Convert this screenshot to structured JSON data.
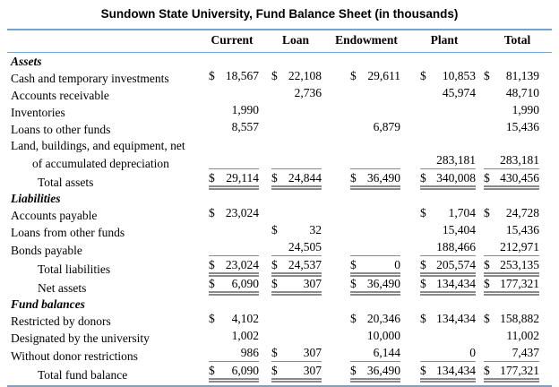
{
  "title": "Sundown State University, Fund Balance Sheet (in thousands)",
  "colors": {
    "accent_rule": "#7aa1c7",
    "cell_rule": "#8a8a8a"
  },
  "table": {
    "row_label_header": "",
    "columns": [
      "Current",
      "Loan",
      "Endowment",
      "Plant",
      "Total"
    ],
    "rows": [
      {
        "kind": "section",
        "label": "Assets",
        "cells": [
          null,
          null,
          null,
          null,
          null
        ]
      },
      {
        "kind": "item",
        "label": "Cash and temporary investments",
        "cells": [
          {
            "dollar": true,
            "value": "18,567"
          },
          {
            "dollar": true,
            "value": "22,108"
          },
          {
            "dollar": true,
            "value": "29,611"
          },
          {
            "dollar": true,
            "value": "10,853"
          },
          {
            "dollar": true,
            "value": "81,139"
          }
        ]
      },
      {
        "kind": "item",
        "label": "Accounts receivable",
        "cells": [
          null,
          {
            "value": "2,736"
          },
          null,
          {
            "value": "45,974"
          },
          {
            "value": "48,710"
          }
        ]
      },
      {
        "kind": "item",
        "label": "Inventories",
        "cells": [
          {
            "value": "1,990"
          },
          null,
          null,
          null,
          {
            "value": "1,990"
          }
        ]
      },
      {
        "kind": "item",
        "label": "Loans to other funds",
        "cells": [
          {
            "value": "8,557"
          },
          null,
          {
            "value": "6,879"
          },
          null,
          {
            "value": "15,436"
          }
        ]
      },
      {
        "kind": "item",
        "label": "Land, buildings, and equipment, net",
        "cells": [
          null,
          null,
          null,
          null,
          null
        ]
      },
      {
        "kind": "item-cont",
        "label": "of accumulated depreciation",
        "cells": [
          {
            "rule": "single"
          },
          {
            "rule": "single"
          },
          {
            "rule": "single"
          },
          {
            "value": "283,181",
            "rule": "single"
          },
          {
            "value": "283,181",
            "rule": "single"
          }
        ]
      },
      {
        "kind": "total",
        "label": "Total assets",
        "cells": [
          {
            "dollar": true,
            "value": "29,114",
            "rule": "double"
          },
          {
            "dollar": true,
            "value": "24,844",
            "rule": "double"
          },
          {
            "dollar": true,
            "value": "36,490",
            "rule": "double"
          },
          {
            "dollar": true,
            "value": "340,008",
            "rule": "double"
          },
          {
            "dollar": true,
            "value": "430,456",
            "rule": "double"
          }
        ]
      },
      {
        "kind": "section",
        "label": "Liabilities",
        "cells": [
          null,
          null,
          null,
          null,
          null
        ]
      },
      {
        "kind": "item",
        "label": "Accounts payable",
        "cells": [
          {
            "dollar": true,
            "value": "23,024"
          },
          null,
          null,
          {
            "dollar": true,
            "value": "1,704"
          },
          {
            "dollar": true,
            "value": "24,728"
          }
        ]
      },
      {
        "kind": "item",
        "label": "Loans from other funds",
        "cells": [
          null,
          {
            "dollar": true,
            "value": "32"
          },
          null,
          {
            "value": "15,404"
          },
          {
            "value": "15,436"
          }
        ]
      },
      {
        "kind": "item",
        "label": "Bonds payable",
        "cells": [
          {
            "rule": "single"
          },
          {
            "value": "24,505",
            "rule": "single"
          },
          {
            "rule": "single"
          },
          {
            "value": "188,466",
            "rule": "single"
          },
          {
            "value": "212,971",
            "rule": "single"
          }
        ]
      },
      {
        "kind": "total",
        "label": "Total liabilities",
        "cells": [
          {
            "dollar": true,
            "value": "23,024",
            "rule": "double"
          },
          {
            "dollar": true,
            "value": "24,537",
            "rule": "double"
          },
          {
            "dollar": true,
            "value": "0",
            "rule": "double"
          },
          {
            "dollar": true,
            "value": "205,574",
            "rule": "double"
          },
          {
            "dollar": true,
            "value": "253,135",
            "rule": "double"
          }
        ]
      },
      {
        "kind": "total",
        "label": "Net assets",
        "cells": [
          {
            "dollar": true,
            "value": "6,090",
            "rule": "double"
          },
          {
            "dollar": true,
            "value": "307",
            "rule": "double"
          },
          {
            "dollar": true,
            "value": "36,490",
            "rule": "double"
          },
          {
            "dollar": true,
            "value": "134,434",
            "rule": "double"
          },
          {
            "dollar": true,
            "value": "177,321",
            "rule": "double"
          }
        ]
      },
      {
        "kind": "section",
        "label": "Fund balances",
        "cells": [
          null,
          null,
          null,
          null,
          null
        ]
      },
      {
        "kind": "item",
        "label": "Restricted by donors",
        "cells": [
          {
            "dollar": true,
            "value": "4,102"
          },
          null,
          {
            "dollar": true,
            "value": "20,346"
          },
          {
            "dollar": true,
            "value": "134,434"
          },
          {
            "dollar": true,
            "value": "158,882"
          }
        ]
      },
      {
        "kind": "item",
        "label": "Designated by the university",
        "cells": [
          {
            "value": "1,002"
          },
          null,
          {
            "value": "10,000"
          },
          null,
          {
            "value": "11,002"
          }
        ]
      },
      {
        "kind": "item",
        "label": "Without donor restrictions",
        "cells": [
          {
            "value": "986",
            "rule": "single"
          },
          {
            "dollar": true,
            "value": "307",
            "rule": "single"
          },
          {
            "value": "6,144",
            "rule": "single"
          },
          {
            "value": "0",
            "rule": "single"
          },
          {
            "value": "7,437",
            "rule": "single"
          }
        ]
      },
      {
        "kind": "total",
        "label": "Total fund balance",
        "cells": [
          {
            "dollar": true,
            "value": "6,090",
            "rule": "double"
          },
          {
            "dollar": true,
            "value": "307",
            "rule": "double"
          },
          {
            "dollar": true,
            "value": "36,490",
            "rule": "double"
          },
          {
            "dollar": true,
            "value": "134,434",
            "rule": "double"
          },
          {
            "dollar": true,
            "value": "177,321",
            "rule": "double"
          }
        ]
      }
    ]
  }
}
